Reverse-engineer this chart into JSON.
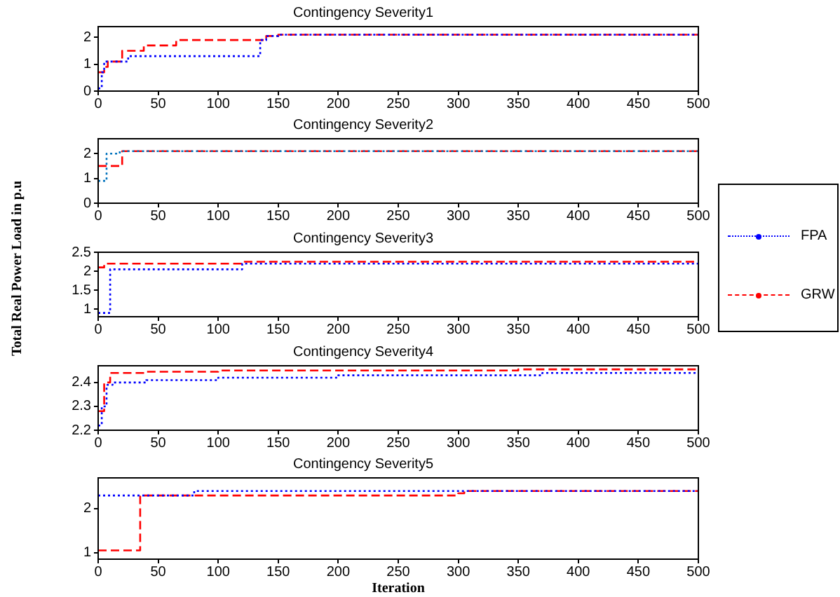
{
  "chart_data": [
    {
      "type": "step",
      "title": "Contingency Severity1",
      "xlim": [
        0,
        500
      ],
      "xticks": [
        0,
        50,
        100,
        150,
        200,
        250,
        300,
        350,
        400,
        450,
        500
      ],
      "ylim": [
        0,
        2.4
      ],
      "yticks": [
        0,
        1,
        2
      ],
      "grid": false,
      "legend": false,
      "marker": "none",
      "series": [
        {
          "color": "#0000ff",
          "line_style": "dotted",
          "x": [
            0,
            3,
            5,
            25,
            135,
            140,
            150,
            500
          ],
          "values": [
            0.1,
            0.7,
            1.1,
            1.3,
            1.9,
            2.05,
            2.1,
            2.1
          ]
        },
        {
          "color": "#ff0000",
          "line_style": "dashed",
          "x": [
            0,
            5,
            8,
            20,
            38,
            65,
            140,
            150,
            500
          ],
          "values": [
            0.7,
            0.9,
            1.1,
            1.5,
            1.7,
            1.9,
            2.05,
            2.1,
            2.1
          ]
        }
      ]
    },
    {
      "type": "step",
      "title": "Contingency Severity2",
      "xlim": [
        0,
        500
      ],
      "xticks": [
        0,
        50,
        100,
        150,
        200,
        250,
        300,
        350,
        400,
        450,
        500
      ],
      "ylim": [
        0,
        2.6
      ],
      "yticks": [
        0,
        1,
        2
      ],
      "grid": false,
      "legend": false,
      "marker": "none",
      "series": [
        {
          "color": "#0072bd",
          "line_style": "dotted",
          "x": [
            0,
            7,
            18,
            500
          ],
          "values": [
            0.9,
            2.0,
            2.1,
            2.1
          ]
        },
        {
          "color": "#ff0000",
          "line_style": "dashed",
          "x": [
            0,
            20,
            500
          ],
          "values": [
            1.5,
            2.1,
            2.1
          ]
        }
      ]
    },
    {
      "type": "step",
      "title": "Contingency Severity3",
      "ylabel": "Total Real Power Load in p.u",
      "xlim": [
        0,
        500
      ],
      "xticks": [
        0,
        50,
        100,
        150,
        200,
        250,
        300,
        350,
        400,
        450,
        500
      ],
      "ylim": [
        0.8,
        2.5
      ],
      "yticks": [
        1,
        1.5,
        2,
        2.5
      ],
      "grid": false,
      "legend": "right",
      "marker": "none",
      "series": [
        {
          "name": "FPA",
          "color": "#0000ff",
          "line_style": "dotted",
          "x": [
            0,
            10,
            105,
            120,
            500
          ],
          "values": [
            0.9,
            2.05,
            2.05,
            2.2,
            2.25
          ]
        },
        {
          "name": "GRW",
          "color": "#ff0000",
          "line_style": "dashed",
          "x": [
            0,
            5,
            120,
            500
          ],
          "values": [
            2.1,
            2.2,
            2.25,
            2.25
          ]
        }
      ]
    },
    {
      "type": "step",
      "title": "Contingency Severity4",
      "xlim": [
        0,
        500
      ],
      "xticks": [
        0,
        50,
        100,
        150,
        200,
        250,
        300,
        350,
        400,
        450,
        500
      ],
      "ylim": [
        2.2,
        2.47
      ],
      "yticks": [
        2.2,
        2.3,
        2.4
      ],
      "grid": false,
      "legend": false,
      "marker": "none",
      "series": [
        {
          "color": "#0000ff",
          "line_style": "dotted",
          "x": [
            0,
            3,
            7,
            12,
            40,
            100,
            200,
            370,
            500
          ],
          "values": [
            2.22,
            2.3,
            2.39,
            2.4,
            2.41,
            2.42,
            2.43,
            2.44,
            2.44
          ]
        },
        {
          "color": "#ff0000",
          "line_style": "dashed",
          "x": [
            0,
            5,
            10,
            40,
            100,
            350,
            500
          ],
          "values": [
            2.28,
            2.4,
            2.44,
            2.445,
            2.45,
            2.455,
            2.455
          ]
        }
      ]
    },
    {
      "type": "step",
      "title": "Contingency Severity5",
      "xlabel": "Iteration",
      "xlim": [
        0,
        500
      ],
      "xticks": [
        0,
        50,
        100,
        150,
        200,
        250,
        300,
        350,
        400,
        450,
        500
      ],
      "ylim": [
        0.85,
        2.7
      ],
      "yticks": [
        1,
        2
      ],
      "grid": false,
      "legend": false,
      "marker": "none",
      "series": [
        {
          "color": "#0000ff",
          "line_style": "dotted",
          "x": [
            0,
            40,
            80,
            500
          ],
          "values": [
            2.3,
            2.3,
            2.4,
            2.45
          ]
        },
        {
          "color": "#ff0000",
          "line_style": "dashed",
          "x": [
            0,
            35,
            300,
            305,
            500
          ],
          "values": [
            1.05,
            2.3,
            2.35,
            2.4,
            2.4
          ]
        }
      ]
    }
  ]
}
